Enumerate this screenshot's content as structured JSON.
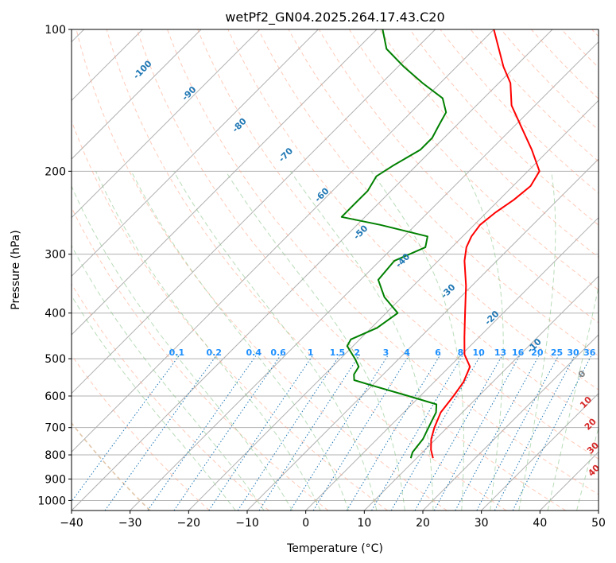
{
  "chart_data": {
    "type": "line",
    "title": "wetPf2_GN04.2025.264.17.43.C20",
    "xlabel": "Temperature (°C)",
    "ylabel": "Pressure (hPa)",
    "xlim": [
      -40,
      50
    ],
    "ylim": [
      1050,
      100
    ],
    "y_scale": "log",
    "grid": true,
    "x_ticks": [
      -40,
      -30,
      -20,
      -10,
      0,
      10,
      20,
      30,
      40,
      50
    ],
    "y_ticks": [
      100,
      200,
      300,
      400,
      500,
      600,
      700,
      800,
      900,
      1000
    ],
    "series": [
      {
        "color": "#ff0000",
        "points": [
          {
            "p": 813,
            "t": 12.8
          },
          {
            "p": 780,
            "t": 11.0
          },
          {
            "p": 740,
            "t": 9.2
          },
          {
            "p": 700,
            "t": 7.8
          },
          {
            "p": 650,
            "t": 6.3
          },
          {
            "p": 600,
            "t": 5.7
          },
          {
            "p": 560,
            "t": 5.0
          },
          {
            "p": 520,
            "t": 3.5
          },
          {
            "p": 490,
            "t": 0.5
          },
          {
            "p": 450,
            "t": -2.5
          },
          {
            "p": 400,
            "t": -6.5
          },
          {
            "p": 350,
            "t": -11.0
          },
          {
            "p": 310,
            "t": -15.5
          },
          {
            "p": 290,
            "t": -17.5
          },
          {
            "p": 275,
            "t": -18.5
          },
          {
            "p": 260,
            "t": -19.0
          },
          {
            "p": 245,
            "t": -18.5
          },
          {
            "p": 230,
            "t": -17.5
          },
          {
            "p": 215,
            "t": -17.0
          },
          {
            "p": 200,
            "t": -18.0
          },
          {
            "p": 180,
            "t": -23.0
          },
          {
            "p": 160,
            "t": -29.0
          },
          {
            "p": 145,
            "t": -34.0
          },
          {
            "p": 130,
            "t": -38.0
          },
          {
            "p": 120,
            "t": -42.0
          },
          {
            "p": 100,
            "t": -50.0
          }
        ]
      },
      {
        "color": "#008000",
        "points": [
          {
            "p": 813,
            "t": 9.0
          },
          {
            "p": 790,
            "t": 8.3
          },
          {
            "p": 740,
            "t": 7.8
          },
          {
            "p": 700,
            "t": 6.8
          },
          {
            "p": 650,
            "t": 5.5
          },
          {
            "p": 625,
            "t": 4.2
          },
          {
            "p": 600,
            "t": -2.0
          },
          {
            "p": 570,
            "t": -10.0
          },
          {
            "p": 555,
            "t": -14.0
          },
          {
            "p": 540,
            "t": -15.0
          },
          {
            "p": 520,
            "t": -15.5
          },
          {
            "p": 500,
            "t": -17.5
          },
          {
            "p": 470,
            "t": -21.0
          },
          {
            "p": 455,
            "t": -21.5
          },
          {
            "p": 430,
            "t": -19.0
          },
          {
            "p": 400,
            "t": -18.0
          },
          {
            "p": 370,
            "t": -23.0
          },
          {
            "p": 340,
            "t": -27.0
          },
          {
            "p": 310,
            "t": -27.5
          },
          {
            "p": 290,
            "t": -24.5
          },
          {
            "p": 275,
            "t": -26.0
          },
          {
            "p": 260,
            "t": -36.0
          },
          {
            "p": 250,
            "t": -44.0
          },
          {
            "p": 235,
            "t": -44.0
          },
          {
            "p": 220,
            "t": -44.0
          },
          {
            "p": 205,
            "t": -45.0
          },
          {
            "p": 195,
            "t": -44.0
          },
          {
            "p": 180,
            "t": -42.0
          },
          {
            "p": 170,
            "t": -42.0
          },
          {
            "p": 160,
            "t": -43.0
          },
          {
            "p": 150,
            "t": -44.0
          },
          {
            "p": 140,
            "t": -47.0
          },
          {
            "p": 130,
            "t": -53.0
          },
          {
            "p": 120,
            "t": -59.0
          },
          {
            "p": 110,
            "t": -65.0
          },
          {
            "p": 100,
            "t": -69.0
          }
        ]
      }
    ],
    "dry_adiabat_labels": [
      {
        "text": "-100",
        "p": 122,
        "t": -103
      },
      {
        "text": "-90",
        "p": 137,
        "t": -91
      },
      {
        "text": "-80",
        "p": 160,
        "t": -77
      },
      {
        "text": "-70",
        "p": 185,
        "t": -64
      },
      {
        "text": "-60",
        "p": 225,
        "t": -51
      },
      {
        "text": "-50",
        "p": 270,
        "t": -38
      },
      {
        "text": "-40",
        "p": 310,
        "t": -26
      },
      {
        "text": "-30",
        "p": 360,
        "t": -13
      },
      {
        "text": "-20",
        "p": 410,
        "t": -1
      },
      {
        "text": "-10",
        "p": 470,
        "t": 11
      }
    ],
    "mixing_ratio_labels": [
      "0.1",
      "0.2",
      "0.4",
      "0.6",
      "1",
      "1.5",
      "2",
      "3",
      "4",
      "6",
      "8",
      "10",
      "13",
      "16",
      "20",
      "25",
      "30",
      "36"
    ],
    "moist_adiabat_labels": [
      {
        "text": "0",
        "p": 540,
        "t": 24,
        "color": "#808080"
      },
      {
        "text": "10",
        "p": 620,
        "t": 29.5,
        "color": "#d62728"
      },
      {
        "text": "20",
        "p": 690,
        "t": 34,
        "color": "#d62728"
      },
      {
        "text": "30",
        "p": 775,
        "t": 38.5,
        "color": "#d62728"
      },
      {
        "text": "40",
        "p": 865,
        "t": 42.5,
        "color": "#d62728"
      }
    ]
  }
}
